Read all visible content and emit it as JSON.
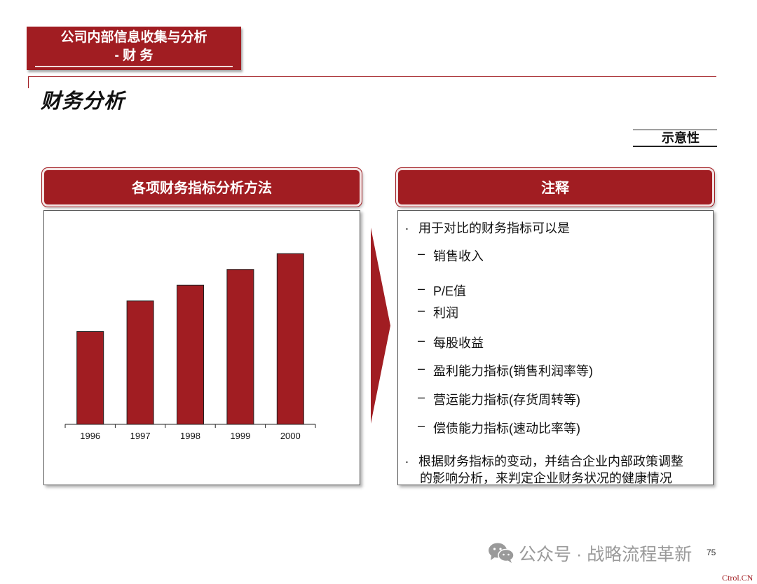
{
  "header": {
    "section_line1": "公司内部信息收集与分析",
    "section_line2": "- 财 务",
    "page_title": "财务分析",
    "badge": "示意性"
  },
  "left_panel": {
    "title": "各项财务指标分析方法"
  },
  "right_panel": {
    "title": "注释",
    "bullet_marker": ".",
    "dash_marker": "–",
    "bullet1": "用于对比的财务指标可以是",
    "items": [
      "销售收入",
      "P/E值",
      "利润",
      "每股收益",
      "盈利能力指标(销售利润率等)",
      "营运能力指标(存货周转等)",
      "偿债能力指标(速动比率等)"
    ],
    "bullet2_line1": "根据财务指标的变动，并结合企业内部政策调整",
    "bullet2_line2": "的影响分析，来判定企业财务状况的健康情况"
  },
  "chart_data": {
    "type": "bar",
    "categories": [
      "1996",
      "1997",
      "1998",
      "1999",
      "2000"
    ],
    "values": [
      1.0,
      1.33,
      1.5,
      1.67,
      1.84
    ],
    "title": "",
    "xlabel": "",
    "ylabel": "",
    "ylim": [
      0,
      2
    ],
    "grid": false,
    "bar_color": "#a11d22"
  },
  "footer": {
    "watermark": "公众号 · 战略流程革新",
    "page_number": "75",
    "corner_mark": "Ctrol.CN"
  },
  "colors": {
    "accent": "#a11d22"
  }
}
